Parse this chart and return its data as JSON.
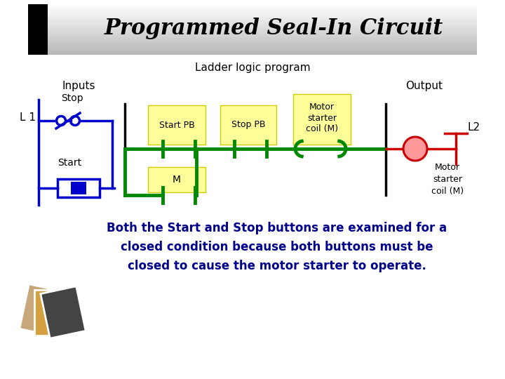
{
  "title": "Programmed Seal-In Circuit",
  "subtitle": "Ladder logic program",
  "blue": "#0000cc",
  "green": "#008800",
  "red": "#cc0000",
  "pink": "#ff9999",
  "yellow": "#ffff99",
  "yellow_border": "#cccc00",
  "black": "#000000",
  "body_text_color": "#00008B",
  "body_line1": "Both the Start and Stop buttons are examined for a",
  "body_line2": "closed condition because both buttons must be",
  "body_line3": "closed to cause the motor starter to operate.",
  "inputs_text": "Inputs",
  "output_text": "Output",
  "l1_text": "L 1",
  "l2_text": "L2",
  "stop_text": "Stop",
  "start_text": "Start",
  "startpb_text": "Start PB",
  "stoppb_text": "Stop PB",
  "coil_text": "Motor\nstarter\ncoil (M)",
  "m_text": "M",
  "coil_right_text": "Motor\nstarter\ncoil (M)"
}
